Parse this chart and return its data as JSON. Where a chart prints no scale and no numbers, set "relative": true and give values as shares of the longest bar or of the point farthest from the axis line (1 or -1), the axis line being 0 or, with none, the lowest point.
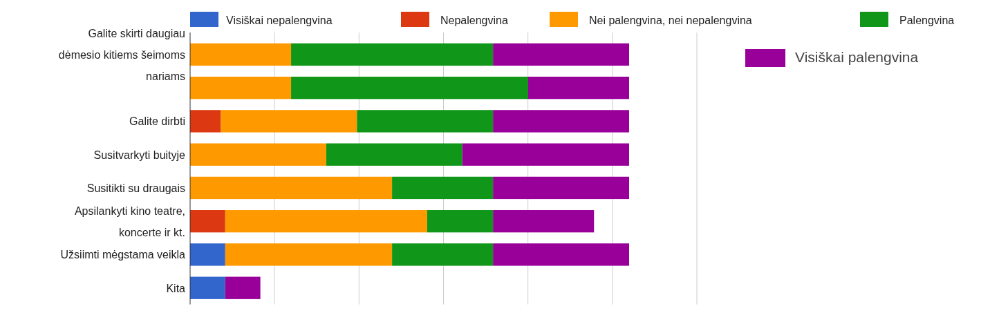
{
  "chart_data": {
    "type": "bar",
    "orientation": "horizontal",
    "stacked": true,
    "relative": true,
    "grid": "x",
    "legend": "top",
    "categories": [
      "Galite skirti daugiau dėmesio kitiems šeimoms nariams",
      null,
      "Galite dirbti",
      "Susitvarkyti buityje",
      "Susitikti su draugais",
      "Apsilankyti kino teatre, koncerte ir kt.",
      "Užsiimti mėgstama veikla",
      "Kita"
    ],
    "series": [
      {
        "name": "Visiškai nepalengvina",
        "color": "#3366cc",
        "values": [
          null,
          null,
          null,
          null,
          null,
          null,
          0.08,
          0.08
        ]
      },
      {
        "name": "Nepalengvina",
        "color": "#dc3912",
        "values": [
          null,
          null,
          0.07,
          null,
          null,
          0.08,
          null,
          null
        ]
      },
      {
        "name": "Nei palengvina, nei nepalengvina",
        "color": "#ff9900",
        "values": [
          0.23,
          0.23,
          0.31,
          0.31,
          0.46,
          0.46,
          0.38,
          null
        ]
      },
      {
        "name": "Palengvina",
        "color": "#109618",
        "values": [
          0.46,
          0.54,
          0.31,
          0.31,
          0.23,
          0.15,
          0.23,
          null
        ]
      },
      {
        "name": "Visiškai palengvina",
        "color": "#990099",
        "values": [
          0.31,
          0.23,
          0.31,
          0.38,
          0.31,
          0.23,
          0.31,
          0.08
        ]
      }
    ]
  }
}
